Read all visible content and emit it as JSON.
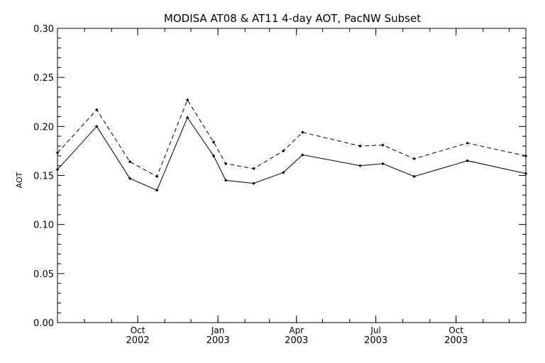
{
  "chart_data": {
    "type": "line",
    "title": "MODISA AT08 & AT11 4-day AOT, PacNW Subset",
    "ylabel": "AOT",
    "xlabel": "",
    "ylim": [
      0.0,
      0.3
    ],
    "xlim": [
      "2002-07-01",
      "2003-12-20"
    ],
    "y_ticks": [
      "0.00",
      "0.05",
      "0.10",
      "0.15",
      "0.20",
      "0.25",
      "0.30"
    ],
    "x_ticks": [
      {
        "date": "2002-10-01",
        "month": "Oct",
        "year": "2002"
      },
      {
        "date": "2003-01-01",
        "month": "Jan",
        "year": "2003"
      },
      {
        "date": "2003-04-01",
        "month": "Apr",
        "year": "2003"
      },
      {
        "date": "2003-07-01",
        "month": "Jul",
        "year": "2003"
      },
      {
        "date": "2003-10-01",
        "month": "Oct",
        "year": "2003"
      }
    ],
    "grid": false,
    "series": [
      {
        "style": "dashed",
        "color": "#000000",
        "x": [
          "2002-07-01",
          "2002-08-15",
          "2002-09-22",
          "2002-10-23",
          "2002-11-27",
          "2002-12-27",
          "2003-01-10",
          "2003-02-11",
          "2003-03-17",
          "2003-04-08",
          "2003-06-13",
          "2003-07-09",
          "2003-08-14",
          "2003-10-14",
          "2003-12-20"
        ],
        "values": [
          0.173,
          0.217,
          0.164,
          0.149,
          0.227,
          0.184,
          0.162,
          0.157,
          0.175,
          0.194,
          0.18,
          0.181,
          0.167,
          0.183,
          0.17
        ]
      },
      {
        "style": "solid",
        "color": "#000000",
        "x": [
          "2002-07-01",
          "2002-08-15",
          "2002-09-22",
          "2002-10-23",
          "2002-11-27",
          "2002-12-27",
          "2003-01-10",
          "2003-02-11",
          "2003-03-17",
          "2003-04-08",
          "2003-06-13",
          "2003-07-09",
          "2003-08-14",
          "2003-10-14",
          "2003-12-20"
        ],
        "values": [
          0.156,
          0.2,
          0.147,
          0.135,
          0.209,
          0.17,
          0.145,
          0.142,
          0.153,
          0.171,
          0.16,
          0.162,
          0.149,
          0.165,
          0.152
        ]
      }
    ]
  }
}
